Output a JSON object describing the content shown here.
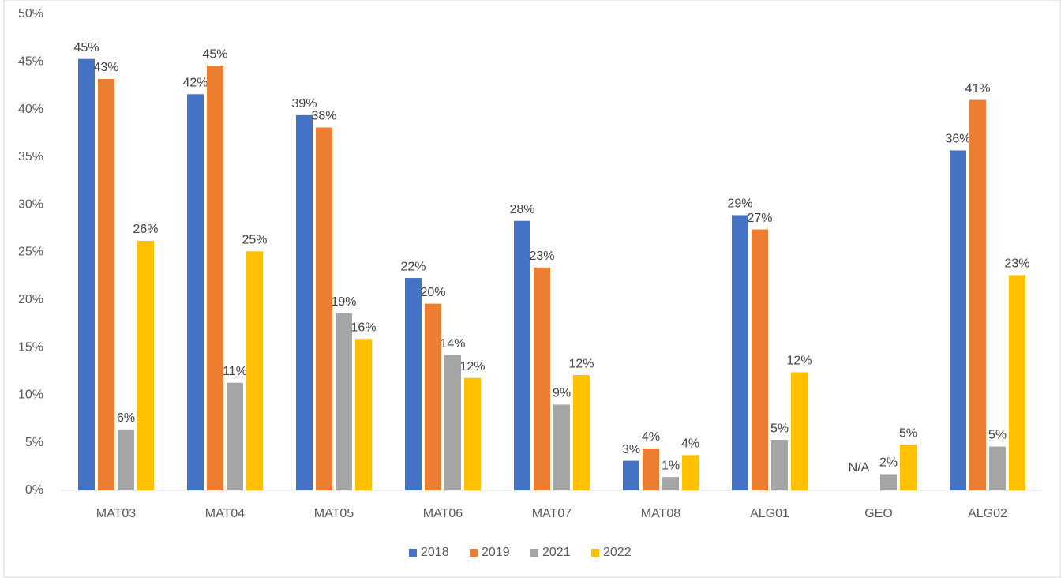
{
  "chart_data": {
    "type": "bar",
    "categories": [
      "MAT03",
      "MAT04",
      "MAT05",
      "MAT06",
      "MAT07",
      "MAT08",
      "ALG01",
      "GEO",
      "ALG02"
    ],
    "series": [
      {
        "name": "2018",
        "color": "#4472c4",
        "values": [
          45.3,
          41.6,
          39.4,
          22.3,
          28.3,
          3.1,
          28.9,
          null,
          35.7
        ],
        "value_labels": [
          "45%",
          "42%",
          "39%",
          "22%",
          "28%",
          "3%",
          "29%",
          "N/A",
          "36%"
        ]
      },
      {
        "name": "2019",
        "color": "#ed7d31",
        "values": [
          43.2,
          44.6,
          38.1,
          19.6,
          23.4,
          4.4,
          27.4,
          null,
          41.0
        ],
        "value_labels": [
          "43%",
          "45%",
          "38%",
          "20%",
          "23%",
          "4%",
          "27%",
          null,
          "41%"
        ]
      },
      {
        "name": "2021",
        "color": "#a5a5a5",
        "values": [
          6.4,
          11.3,
          18.6,
          14.2,
          9.0,
          1.4,
          5.3,
          1.7,
          4.6
        ],
        "value_labels": [
          "6%",
          "11%",
          "19%",
          "14%",
          "9%",
          "1%",
          "5%",
          "2%",
          "5%"
        ]
      },
      {
        "name": "2022",
        "color": "#ffc000",
        "values": [
          26.2,
          25.1,
          15.9,
          11.8,
          12.1,
          3.7,
          12.4,
          4.8,
          22.6
        ],
        "value_labels": [
          "26%",
          "25%",
          "16%",
          "12%",
          "12%",
          "4%",
          "12%",
          "5%",
          "23%"
        ]
      }
    ],
    "ylim": [
      0,
      50
    ],
    "yticks": [
      {
        "value": 0,
        "label": "0%"
      },
      {
        "value": 5,
        "label": "5%"
      },
      {
        "value": 10,
        "label": "10%"
      },
      {
        "value": 15,
        "label": "15%"
      },
      {
        "value": 20,
        "label": "20%"
      },
      {
        "value": 25,
        "label": "25%"
      },
      {
        "value": 30,
        "label": "30%"
      },
      {
        "value": 35,
        "label": "35%"
      },
      {
        "value": 40,
        "label": "40%"
      },
      {
        "value": 45,
        "label": "45%"
      },
      {
        "value": 50,
        "label": "50%"
      }
    ],
    "grid": false,
    "legend": "bottom"
  }
}
